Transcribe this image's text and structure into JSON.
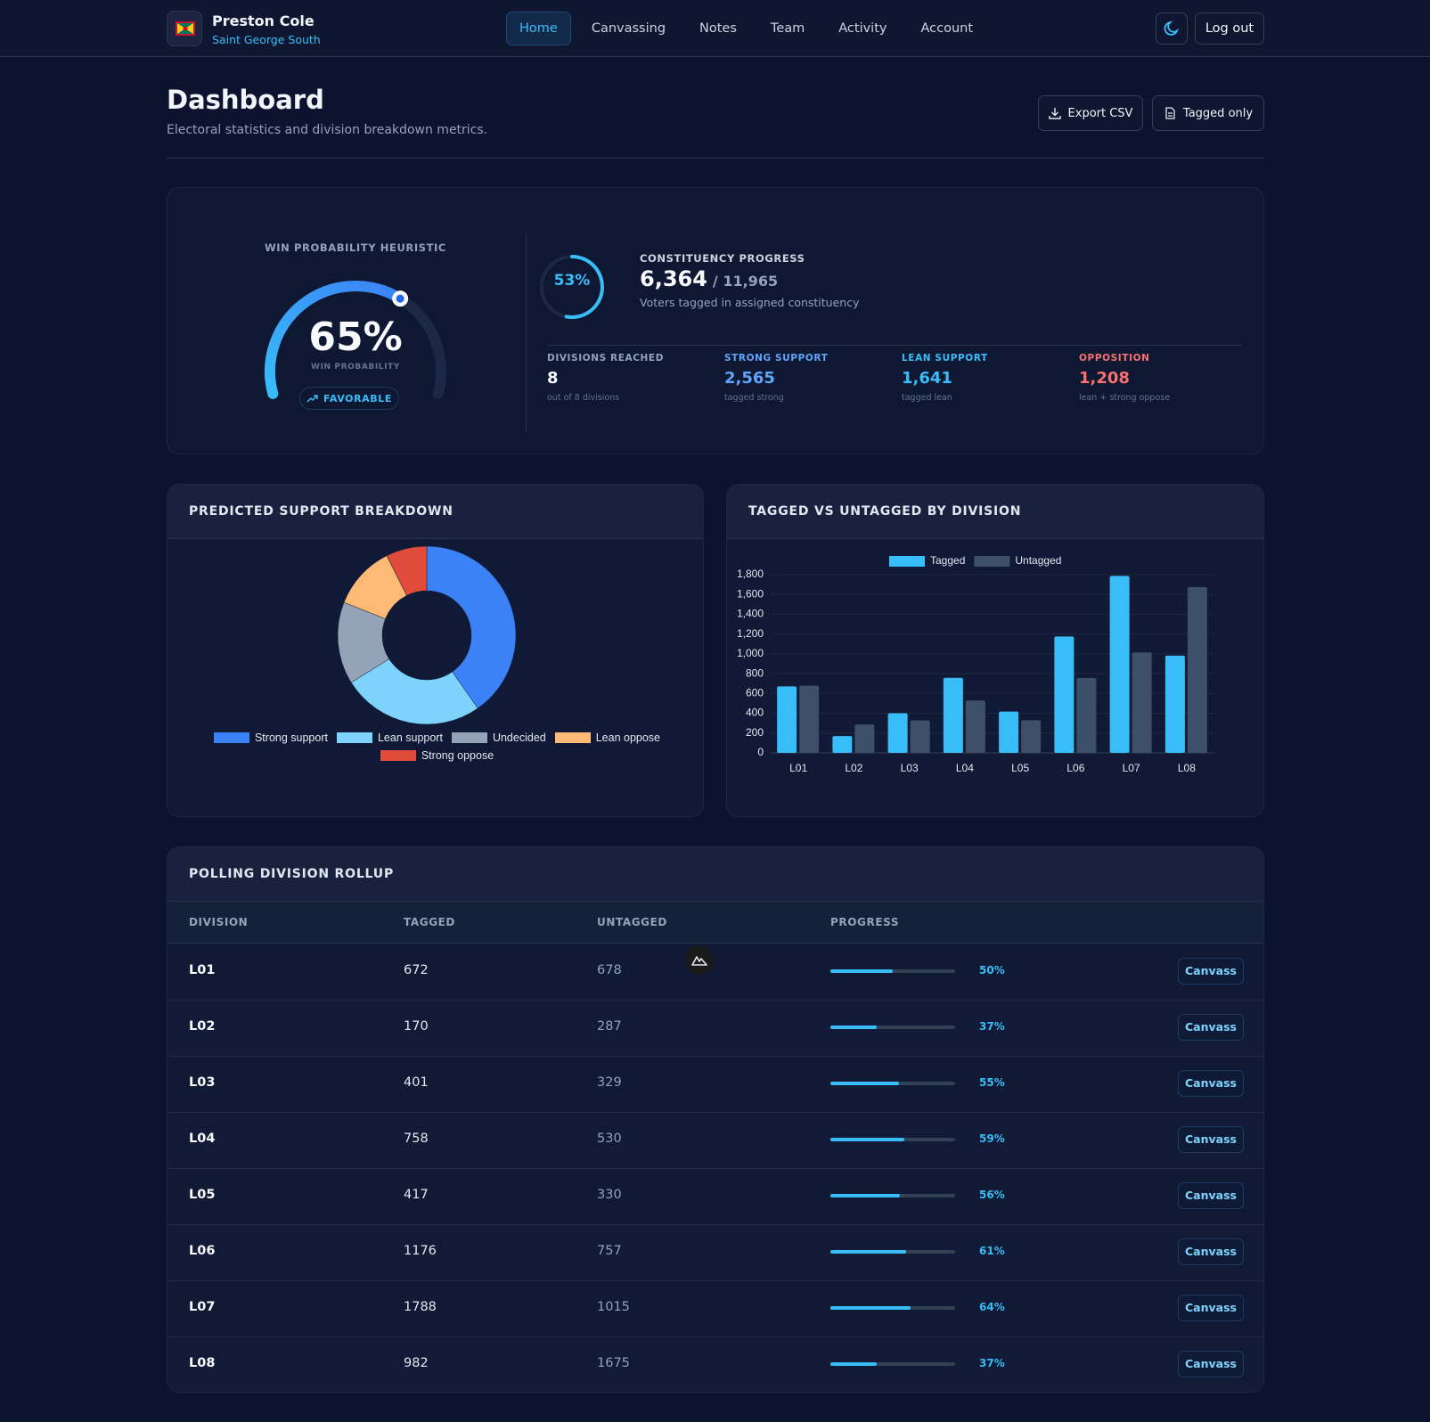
{
  "header": {
    "name": "Preston Cole",
    "constituency": "Saint George South",
    "nav": [
      "Home",
      "Canvassing",
      "Notes",
      "Team",
      "Activity",
      "Account"
    ],
    "logout": "Log out"
  },
  "page": {
    "title": "Dashboard",
    "subtitle": "Electoral statistics and division breakdown metrics.",
    "actions": [
      "Export CSV",
      "Tagged only"
    ]
  },
  "summary": {
    "win": {
      "heading": "WIN PROBABILITY HEURISTIC",
      "value": 65,
      "value_label": "65%",
      "caption": "WIN PROBABILITY",
      "badge": "FAVORABLE"
    },
    "progress": {
      "heading": "CONSTITUENCY PROGRESS",
      "percent": 53,
      "percent_label": "53%",
      "tagged": "6,364",
      "total": "/ 11,965",
      "caption": "Voters tagged in assigned constituency"
    },
    "stats": [
      {
        "label": "DIVISIONS REACHED",
        "value": "8",
        "caption": "out of 8 divisions"
      },
      {
        "label": "STRONG SUPPORT",
        "value": "2,565",
        "caption": "tagged strong"
      },
      {
        "label": "LEAN SUPPORT",
        "value": "1,641",
        "caption": "tagged lean"
      },
      {
        "label": "OPPOSITION",
        "value": "1,208",
        "caption": "lean + strong oppose"
      }
    ]
  },
  "chart_data": [
    {
      "type": "doughnut",
      "title": "PREDICTED SUPPORT BREAKDOWN",
      "categories": [
        "Strong support",
        "Lean support",
        "Undecided",
        "Lean oppose",
        "Strong oppose"
      ],
      "values": [
        2565,
        1641,
        950,
        735,
        473
      ],
      "colors": [
        "#3b82f6",
        "#7dd3fc",
        "#94a3b8",
        "#fdba74",
        "#e04b3c"
      ],
      "legend": "bottom"
    },
    {
      "type": "bar",
      "title": "TAGGED VS UNTAGGED BY DIVISION",
      "categories": [
        "L01",
        "L02",
        "L03",
        "L04",
        "L05",
        "L06",
        "L07",
        "L08"
      ],
      "series": [
        {
          "name": "Tagged",
          "color": "#38bdf8",
          "values": [
            672,
            170,
            401,
            758,
            417,
            1176,
            1788,
            982
          ]
        },
        {
          "name": "Untagged",
          "color": "#3d4f69",
          "values": [
            678,
            287,
            329,
            530,
            330,
            757,
            1015,
            1675
          ]
        }
      ],
      "ylim": [
        0,
        1800
      ],
      "yticks": [
        0,
        200,
        400,
        600,
        800,
        {
          "value": 1000,
          "label": "1,000"
        },
        {
          "value": 1200,
          "label": "1,200"
        },
        {
          "value": 1400,
          "label": "1,400"
        },
        {
          "value": 1600,
          "label": "1,600"
        },
        {
          "value": 1800,
          "label": "1,800"
        }
      ],
      "grid": true,
      "legend": "top"
    }
  ],
  "table": {
    "title": "POLLING DIVISION ROLLUP",
    "columns": [
      "DIVISION",
      "TAGGED",
      "UNTAGGED",
      "PROGRESS"
    ],
    "rows": [
      {
        "division": "L01",
        "tagged": 672,
        "untagged": 678,
        "progress": 50,
        "progress_label": "50%",
        "action": "Canvass"
      },
      {
        "division": "L02",
        "tagged": 170,
        "untagged": 287,
        "progress": 37,
        "progress_label": "37%",
        "action": "Canvass"
      },
      {
        "division": "L03",
        "tagged": 401,
        "untagged": 329,
        "progress": 55,
        "progress_label": "55%",
        "action": "Canvass"
      },
      {
        "division": "L04",
        "tagged": 758,
        "untagged": 530,
        "progress": 59,
        "progress_label": "59%",
        "action": "Canvass"
      },
      {
        "division": "L05",
        "tagged": 417,
        "untagged": 330,
        "progress": 56,
        "progress_label": "56%",
        "action": "Canvass"
      },
      {
        "division": "L06",
        "tagged": 1176,
        "untagged": 757,
        "progress": 61,
        "progress_label": "61%",
        "action": "Canvass"
      },
      {
        "division": "L07",
        "tagged": 1788,
        "untagged": 1015,
        "progress": 64,
        "progress_label": "64%",
        "action": "Canvass"
      },
      {
        "division": "L08",
        "tagged": 982,
        "untagged": 1675,
        "progress": 37,
        "progress_label": "37%",
        "action": "Canvass"
      }
    ]
  }
}
